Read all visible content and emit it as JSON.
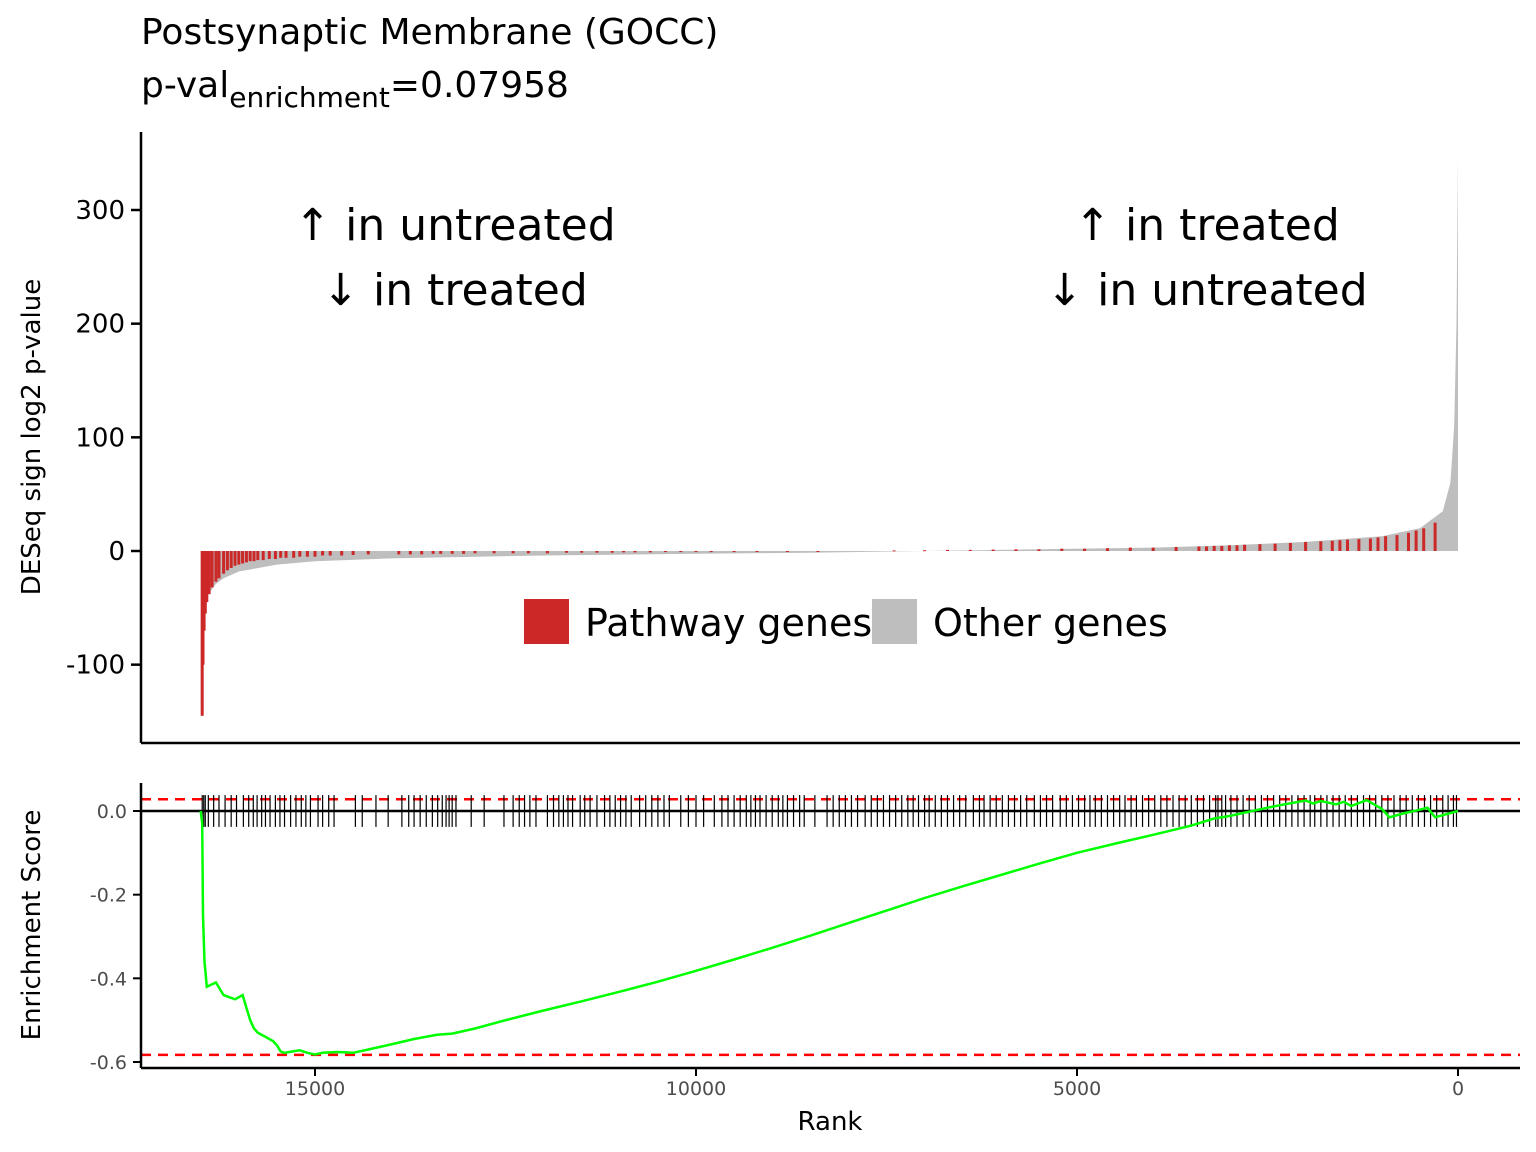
{
  "header": {
    "title": "Postsynaptic Membrane (GOCC)",
    "pval_prefix": "p-val",
    "pval_subscript": "enrichment",
    "pval_value": "=0.07958"
  },
  "colors": {
    "pathway": "#cc2828",
    "other": "#bebebe",
    "running_score": "#00ff00",
    "threshold": "#ff0000",
    "axis": "#000000"
  },
  "annotations": {
    "left_line1": "↑ in untreated",
    "left_line2": "↓ in treated",
    "right_line1": "↑ in treated",
    "right_line2": "↓ in untreated"
  },
  "chart_data": [
    {
      "type": "bar",
      "panel": "top",
      "ylabel": "DESeq sign log2 p-value",
      "xlim": [
        16500,
        0
      ],
      "x_reversed": true,
      "ylim": [
        -168,
        367
      ],
      "yticks": [
        -100,
        0,
        100,
        200,
        300
      ],
      "ytick_labels": [
        "-100",
        "0",
        "100",
        "200",
        "300"
      ],
      "legend": {
        "position": "inside-center",
        "entries": [
          "Pathway genes",
          "Other genes"
        ]
      },
      "series": [
        {
          "name": "Other genes",
          "curve": [
            [
              16500,
              -145
            ],
            [
              16480,
              -80
            ],
            [
              16450,
              -55
            ],
            [
              16400,
              -38
            ],
            [
              16300,
              -29
            ],
            [
              16200,
              -24
            ],
            [
              16000,
              -18
            ],
            [
              15500,
              -12
            ],
            [
              15000,
              -9
            ],
            [
              14000,
              -6.5
            ],
            [
              12000,
              -4
            ],
            [
              10000,
              -2.5
            ],
            [
              8500,
              -1.5
            ],
            [
              7000,
              0
            ],
            [
              5500,
              1.5
            ],
            [
              4000,
              3
            ],
            [
              3000,
              5
            ],
            [
              2000,
              8
            ],
            [
              1000,
              13
            ],
            [
              500,
              20
            ],
            [
              200,
              35
            ],
            [
              100,
              60
            ],
            [
              50,
              110
            ],
            [
              20,
              200
            ],
            [
              0,
              345
            ]
          ]
        },
        {
          "name": "Pathway genes",
          "genes": [
            [
              16480,
              -145
            ],
            [
              16470,
              -100
            ],
            [
              16455,
              -70
            ],
            [
              16440,
              -55
            ],
            [
              16420,
              -45
            ],
            [
              16390,
              -38
            ],
            [
              16350,
              -32
            ],
            [
              16300,
              -27
            ],
            [
              16260,
              -24
            ],
            [
              16200,
              -20
            ],
            [
              16150,
              -17
            ],
            [
              16100,
              -15
            ],
            [
              16050,
              -13
            ],
            [
              16000,
              -12
            ],
            [
              15950,
              -11
            ],
            [
              15900,
              -10
            ],
            [
              15850,
              -9
            ],
            [
              15800,
              -9
            ],
            [
              15750,
              -8
            ],
            [
              15680,
              -8
            ],
            [
              15600,
              -7
            ],
            [
              15520,
              -7
            ],
            [
              15450,
              -6
            ],
            [
              15380,
              -6
            ],
            [
              15280,
              -6
            ],
            [
              15200,
              -5
            ],
            [
              15100,
              -5
            ],
            [
              15000,
              -5
            ],
            [
              14900,
              -4
            ],
            [
              14800,
              -4
            ],
            [
              14650,
              -4
            ],
            [
              14500,
              -3.5
            ],
            [
              14300,
              -3
            ],
            [
              13900,
              -3
            ],
            [
              13750,
              -3
            ],
            [
              13600,
              -3
            ],
            [
              13450,
              -2.5
            ],
            [
              13350,
              -2.5
            ],
            [
              13200,
              -2.5
            ],
            [
              13050,
              -2.5
            ],
            [
              12900,
              -2
            ],
            [
              12650,
              -2
            ],
            [
              12400,
              -2
            ],
            [
              12200,
              -2
            ],
            [
              11950,
              -2
            ],
            [
              11700,
              -1.5
            ],
            [
              11500,
              -1.5
            ],
            [
              11300,
              -1.5
            ],
            [
              11100,
              -1.5
            ],
            [
              10950,
              -1.2
            ],
            [
              10800,
              -1.2
            ],
            [
              10600,
              -1.2
            ],
            [
              10400,
              -1
            ],
            [
              10200,
              -1
            ],
            [
              10000,
              -1
            ],
            [
              9800,
              -1
            ],
            [
              9500,
              -1
            ],
            [
              9200,
              -0.8
            ],
            [
              8800,
              -0.6
            ],
            [
              8400,
              -0.4
            ],
            [
              7400,
              0.5
            ],
            [
              7000,
              0.7
            ],
            [
              6700,
              1
            ],
            [
              6400,
              1
            ],
            [
              6100,
              1.2
            ],
            [
              5800,
              1.5
            ],
            [
              5500,
              1.5
            ],
            [
              5200,
              2
            ],
            [
              4900,
              2
            ],
            [
              4600,
              2.5
            ],
            [
              4300,
              3
            ],
            [
              4000,
              3
            ],
            [
              3700,
              3.5
            ],
            [
              3400,
              4
            ],
            [
              3300,
              4
            ],
            [
              3200,
              4.5
            ],
            [
              3100,
              4.5
            ],
            [
              3000,
              5
            ],
            [
              2900,
              5
            ],
            [
              2800,
              5.5
            ],
            [
              2600,
              6
            ],
            [
              2400,
              6.5
            ],
            [
              2200,
              7
            ],
            [
              2000,
              8
            ],
            [
              1800,
              8.5
            ],
            [
              1650,
              9
            ],
            [
              1550,
              9.5
            ],
            [
              1450,
              10
            ],
            [
              1300,
              10.5
            ],
            [
              1150,
              11
            ],
            [
              1050,
              12
            ],
            [
              950,
              13
            ],
            [
              800,
              14
            ],
            [
              650,
              16
            ],
            [
              550,
              18
            ],
            [
              450,
              20
            ],
            [
              300,
              25
            ]
          ]
        }
      ]
    },
    {
      "type": "line",
      "panel": "bottom",
      "xlabel": "Rank",
      "ylabel": "Enrichment Score",
      "xlim": [
        16500,
        0
      ],
      "x_reversed": true,
      "xticks": [
        15000,
        10000,
        5000,
        0
      ],
      "xtick_labels": [
        "15000",
        "10000",
        "5000",
        "0"
      ],
      "ylim": [
        -0.61,
        0.07
      ],
      "yticks": [
        -0.6,
        -0.4,
        -0.2,
        0.0
      ],
      "ytick_labels": [
        "-0.6",
        "-0.4",
        "-0.2",
        "0.0"
      ],
      "hlines": [
        {
          "y": 0.0,
          "style": "solid",
          "color": "#000000"
        },
        {
          "y": 0.028,
          "style": "dashed",
          "color": "#ff0000"
        },
        {
          "y": -0.583,
          "style": "dashed",
          "color": "#ff0000"
        }
      ],
      "running_score": [
        [
          16500,
          0.0
        ],
        [
          16480,
          -0.03
        ],
        [
          16470,
          -0.25
        ],
        [
          16450,
          -0.36
        ],
        [
          16420,
          -0.42
        ],
        [
          16300,
          -0.41
        ],
        [
          16200,
          -0.44
        ],
        [
          16050,
          -0.45
        ],
        [
          15950,
          -0.44
        ],
        [
          15850,
          -0.5
        ],
        [
          15800,
          -0.52
        ],
        [
          15750,
          -0.53
        ],
        [
          15650,
          -0.54
        ],
        [
          15550,
          -0.55
        ],
        [
          15500,
          -0.56
        ],
        [
          15450,
          -0.575
        ],
        [
          15400,
          -0.578
        ],
        [
          15300,
          -0.575
        ],
        [
          15200,
          -0.572
        ],
        [
          15100,
          -0.578
        ],
        [
          15000,
          -0.582
        ],
        [
          14900,
          -0.578
        ],
        [
          14700,
          -0.576
        ],
        [
          14500,
          -0.578
        ],
        [
          14300,
          -0.57
        ],
        [
          14000,
          -0.558
        ],
        [
          13700,
          -0.545
        ],
        [
          13400,
          -0.535
        ],
        [
          13200,
          -0.532
        ],
        [
          12900,
          -0.52
        ],
        [
          12500,
          -0.5
        ],
        [
          12000,
          -0.477
        ],
        [
          11500,
          -0.455
        ],
        [
          11000,
          -0.432
        ],
        [
          10500,
          -0.408
        ],
        [
          10000,
          -0.382
        ],
        [
          9500,
          -0.355
        ],
        [
          9000,
          -0.327
        ],
        [
          8500,
          -0.298
        ],
        [
          8000,
          -0.268
        ],
        [
          7500,
          -0.238
        ],
        [
          7000,
          -0.208
        ],
        [
          6500,
          -0.18
        ],
        [
          6000,
          -0.153
        ],
        [
          5500,
          -0.126
        ],
        [
          5000,
          -0.1
        ],
        [
          4500,
          -0.078
        ],
        [
          4000,
          -0.057
        ],
        [
          3500,
          -0.035
        ],
        [
          3200,
          -0.018
        ],
        [
          3000,
          -0.012
        ],
        [
          2700,
          0.0
        ],
        [
          2500,
          0.008
        ],
        [
          2300,
          0.015
        ],
        [
          2000,
          0.025
        ],
        [
          1900,
          0.018
        ],
        [
          1800,
          0.024
        ],
        [
          1600,
          0.016
        ],
        [
          1500,
          0.022
        ],
        [
          1400,
          0.012
        ],
        [
          1200,
          0.026
        ],
        [
          1000,
          0.005
        ],
        [
          900,
          -0.015
        ],
        [
          700,
          -0.005
        ],
        [
          500,
          0.003
        ],
        [
          400,
          0.008
        ],
        [
          300,
          -0.015
        ],
        [
          100,
          -0.005
        ],
        [
          0,
          0.0
        ]
      ],
      "hit_ranks": [
        16480,
        16460,
        16440,
        16400,
        16330,
        16260,
        16180,
        16100,
        16030,
        15940,
        15870,
        15810,
        15760,
        15700,
        15650,
        15590,
        15520,
        15460,
        15400,
        15320,
        15250,
        15180,
        15120,
        15060,
        14960,
        14900,
        14820,
        14750,
        14470,
        14380,
        14200,
        14040,
        13860,
        13770,
        13700,
        13620,
        13540,
        13460,
        13390,
        13330,
        13280,
        13240,
        13200,
        13150,
        12950,
        12780,
        12520,
        12400,
        12320,
        12250,
        12180,
        12100,
        11950,
        11870,
        11800,
        11740,
        11680,
        11620,
        11520,
        11460,
        11390,
        11300,
        11200,
        11130,
        11060,
        10990,
        10920,
        10850,
        10740,
        10660,
        10580,
        10500,
        10420,
        10350,
        10200,
        10100,
        10000,
        9900,
        9760,
        9660,
        9580,
        9500,
        9420,
        9340,
        9280,
        9220,
        9160,
        9080,
        9000,
        8920,
        8860,
        8800,
        8720,
        8640,
        8580,
        8440,
        8280,
        8200,
        8120,
        8040,
        7960,
        7880,
        7780,
        7700,
        7620,
        7540,
        7460,
        7380,
        7300,
        7220,
        7150,
        7080,
        7000,
        6940,
        6860,
        6780,
        6700,
        6620,
        6540,
        6460,
        6360,
        6280,
        6220,
        6140,
        6060,
        5980,
        5900,
        5820,
        5740,
        5660,
        5560,
        5480,
        5400,
        5320,
        5220,
        5140,
        5060,
        4980,
        4900,
        4830,
        4760,
        4680,
        4600,
        4520,
        4440,
        4370,
        4290,
        4220,
        4140,
        4060,
        3980,
        3900,
        3820,
        3740,
        3660,
        3580,
        3500,
        3420,
        3340,
        3260,
        3180,
        3150,
        3100,
        3050,
        2980,
        2900,
        2820,
        2740,
        2660,
        2580,
        2500,
        2420,
        2340,
        2260,
        2180,
        2100,
        2020,
        1940,
        1880,
        1800,
        1720,
        1640,
        1560,
        1480,
        1400,
        1320,
        1240,
        1160,
        1080,
        1000,
        920,
        840,
        760,
        680,
        600,
        520,
        440,
        360,
        280,
        200,
        130,
        60,
        20
      ]
    }
  ]
}
